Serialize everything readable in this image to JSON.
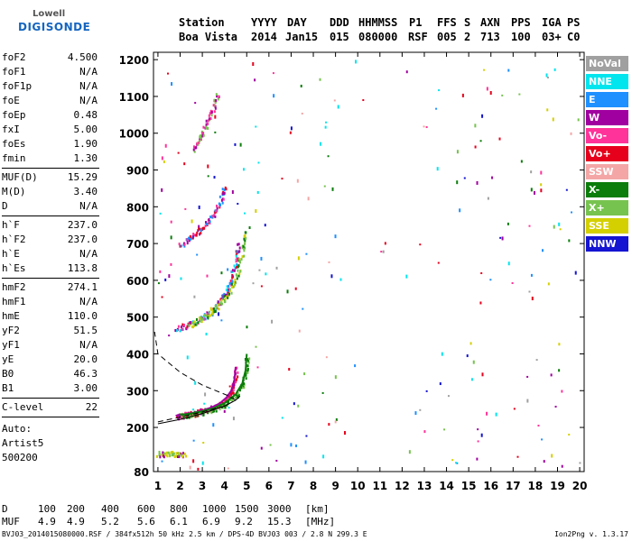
{
  "logo": {
    "line1": "Lowell",
    "line2": "DIGISONDE"
  },
  "header": {
    "labels": [
      "Station",
      "YYYY",
      "DAY",
      "DDD",
      "HHMMSS",
      "P1",
      "FFS",
      "S",
      "AXN",
      "PPS",
      "IGA",
      "PS"
    ],
    "values": [
      "Boa Vista",
      "2014",
      "Jan15",
      "015",
      "080000",
      "RSF",
      "005",
      "2",
      "713",
      "100",
      "03+",
      "C0"
    ]
  },
  "params": {
    "group1": [
      [
        "foF2",
        "4.500"
      ],
      [
        "foF1",
        "N/A"
      ],
      [
        "foF1p",
        "N/A"
      ],
      [
        "foE",
        "N/A"
      ],
      [
        "foEp",
        "0.48"
      ],
      [
        "fxI",
        "5.00"
      ],
      [
        "foEs",
        "1.90"
      ],
      [
        "fmin",
        "1.30"
      ]
    ],
    "group2": [
      [
        "MUF(D)",
        "15.29"
      ],
      [
        "M(D)",
        "3.40"
      ],
      [
        "D",
        "N/A"
      ]
    ],
    "group3": [
      [
        "h`F",
        "237.0"
      ],
      [
        "h`F2",
        "237.0"
      ],
      [
        "h`E",
        "N/A"
      ],
      [
        "h`Es",
        "113.8"
      ]
    ],
    "group4": [
      [
        "hmF2",
        "274.1"
      ],
      [
        "hmF1",
        "N/A"
      ],
      [
        "hmE",
        "110.0"
      ],
      [
        "yF2",
        "51.5"
      ],
      [
        "yF1",
        "N/A"
      ],
      [
        "yE",
        "20.0"
      ],
      [
        "B0",
        "46.3"
      ],
      [
        "B1",
        "3.00"
      ]
    ],
    "group5": [
      [
        "C-level",
        "22"
      ]
    ]
  },
  "auto": [
    "Auto:",
    "Artist5",
    "500200"
  ],
  "legend": [
    {
      "label": "NoVal",
      "color": "#a0a0a0"
    },
    {
      "label": "NNE",
      "color": "#00e5ee"
    },
    {
      "label": "E",
      "color": "#1e90ff"
    },
    {
      "label": "W",
      "color": "#a0009f"
    },
    {
      "label": "Vo-",
      "color": "#ff3399"
    },
    {
      "label": "Vo+",
      "color": "#e6001c"
    },
    {
      "label": "SSW",
      "color": "#f4a6a6"
    },
    {
      "label": "X-",
      "color": "#0a7d0a"
    },
    {
      "label": "X+",
      "color": "#77c34f"
    },
    {
      "label": "SSE",
      "color": "#d4d000"
    },
    {
      "label": "NNW",
      "color": "#1414d2"
    }
  ],
  "footer": {
    "d_label": "D",
    "d_values": [
      "100",
      "200",
      "400",
      "600",
      "800",
      "1000",
      "1500",
      "3000",
      "[km]"
    ],
    "muf_label": "MUF",
    "muf_values": [
      "4.9",
      "4.9",
      "5.2",
      "5.6",
      "6.1",
      "6.9",
      "9.2",
      "15.3",
      "[MHz]"
    ],
    "filename": "BVJ03_2014015080000.RSF / 384fx512h 50 kHz 2.5 km / DPS-4D BVJ03 003 / 2.8 N 299.3 E",
    "version": "Ion2Png v. 1.3.17"
  },
  "chart_data": {
    "type": "scatter",
    "x_ticks": [
      1,
      2,
      3,
      4,
      5,
      6,
      7,
      8,
      9,
      10,
      11,
      12,
      13,
      14,
      15,
      16,
      17,
      18,
      19,
      20
    ],
    "y_ticks": [
      80,
      200,
      300,
      400,
      500,
      600,
      700,
      800,
      900,
      1000,
      1100,
      1200
    ],
    "xlim": [
      0.8,
      20.2
    ],
    "ylim": [
      80,
      1220
    ],
    "trace_o_1": [
      [
        1.8,
        232
      ],
      [
        2.2,
        236
      ],
      [
        2.6,
        240
      ],
      [
        3.0,
        246
      ],
      [
        3.4,
        254
      ],
      [
        3.8,
        266
      ],
      [
        4.1,
        282
      ],
      [
        4.3,
        300
      ],
      [
        4.45,
        330
      ],
      [
        4.5,
        365
      ]
    ],
    "trace_x_1": [
      [
        2.0,
        234
      ],
      [
        2.5,
        238
      ],
      [
        3.0,
        244
      ],
      [
        3.5,
        252
      ],
      [
        4.0,
        266
      ],
      [
        4.5,
        290
      ],
      [
        4.8,
        320
      ],
      [
        4.95,
        355
      ],
      [
        5.0,
        400
      ]
    ],
    "trace_o_2": [
      [
        1.8,
        470
      ],
      [
        2.2,
        478
      ],
      [
        2.6,
        488
      ],
      [
        3.0,
        500
      ],
      [
        3.4,
        518
      ],
      [
        3.8,
        545
      ],
      [
        4.1,
        575
      ],
      [
        4.3,
        610
      ],
      [
        4.5,
        660
      ],
      [
        4.6,
        700
      ]
    ],
    "trace_x_2": [
      [
        2.4,
        480
      ],
      [
        2.9,
        495
      ],
      [
        3.4,
        515
      ],
      [
        3.9,
        545
      ],
      [
        4.3,
        580
      ],
      [
        4.6,
        625
      ],
      [
        4.8,
        690
      ],
      [
        4.9,
        740
      ]
    ],
    "trace_o_3": [
      [
        2.0,
        700
      ],
      [
        2.4,
        715
      ],
      [
        2.8,
        735
      ],
      [
        3.2,
        758
      ],
      [
        3.5,
        785
      ],
      [
        3.8,
        820
      ],
      [
        4.0,
        860
      ]
    ],
    "trace_o_4": [
      [
        2.6,
        960
      ],
      [
        2.9,
        990
      ],
      [
        3.2,
        1030
      ],
      [
        3.5,
        1075
      ],
      [
        3.7,
        1110
      ]
    ],
    "es_trace": [
      [
        1.0,
        130
      ],
      [
        1.4,
        130
      ],
      [
        1.8,
        130
      ],
      [
        2.2,
        130
      ]
    ],
    "profile": [
      [
        1.0,
        215
      ],
      [
        2.0,
        228
      ],
      [
        3.0,
        242
      ],
      [
        4.0,
        258
      ],
      [
        4.5,
        274.1
      ],
      [
        4.1,
        288
      ],
      [
        3.0,
        315
      ],
      [
        2.0,
        350
      ],
      [
        1.0,
        400
      ],
      [
        0.85,
        460
      ]
    ],
    "model_curve": [
      [
        1.0,
        210
      ],
      [
        2.0,
        222
      ],
      [
        3.0,
        238
      ],
      [
        4.0,
        258
      ],
      [
        4.5,
        274
      ],
      [
        4.7,
        285
      ]
    ]
  }
}
